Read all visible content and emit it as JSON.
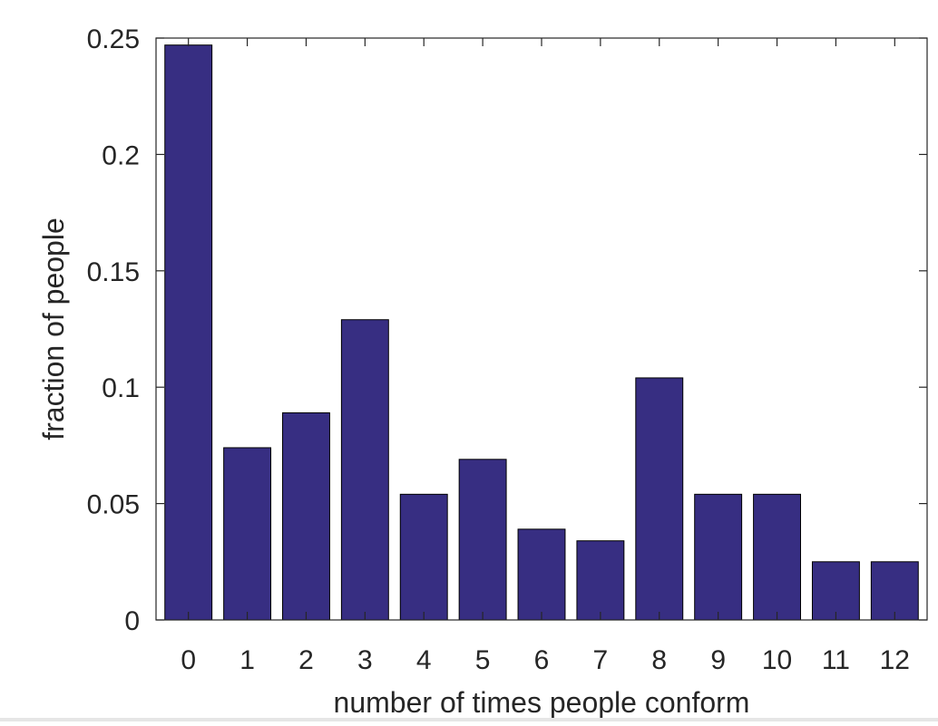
{
  "chart_data": {
    "type": "bar",
    "categories": [
      "0",
      "1",
      "2",
      "3",
      "4",
      "5",
      "6",
      "7",
      "8",
      "9",
      "10",
      "11",
      "12"
    ],
    "values": [
      0.247,
      0.074,
      0.089,
      0.129,
      0.054,
      0.069,
      0.039,
      0.034,
      0.104,
      0.054,
      0.054,
      0.025,
      0.025
    ],
    "title": "",
    "xlabel": "number of times people conform",
    "ylabel": "fraction of people",
    "ylim": [
      0,
      0.25
    ],
    "yticks": [
      0,
      0.05,
      0.1,
      0.15,
      0.2,
      0.25
    ],
    "ytick_labels": [
      "0",
      "0.05",
      "0.1",
      "0.15",
      "0.2",
      "0.25"
    ],
    "grid": false,
    "bar_color": "#372e82",
    "bar_edge_color": "#000000"
  }
}
